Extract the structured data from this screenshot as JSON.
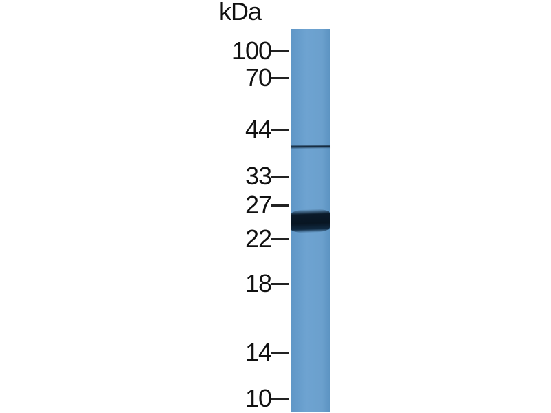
{
  "blot": {
    "unit_label": "kDa",
    "markers": [
      "100",
      "70",
      "44",
      "33",
      "27",
      "22",
      "18",
      "14",
      "10"
    ],
    "lane_color": "#6aa0cd",
    "bands": [
      {
        "kda_approx": 40,
        "intensity": "weak"
      },
      {
        "kda_approx": 25,
        "intensity": "strong"
      }
    ]
  }
}
